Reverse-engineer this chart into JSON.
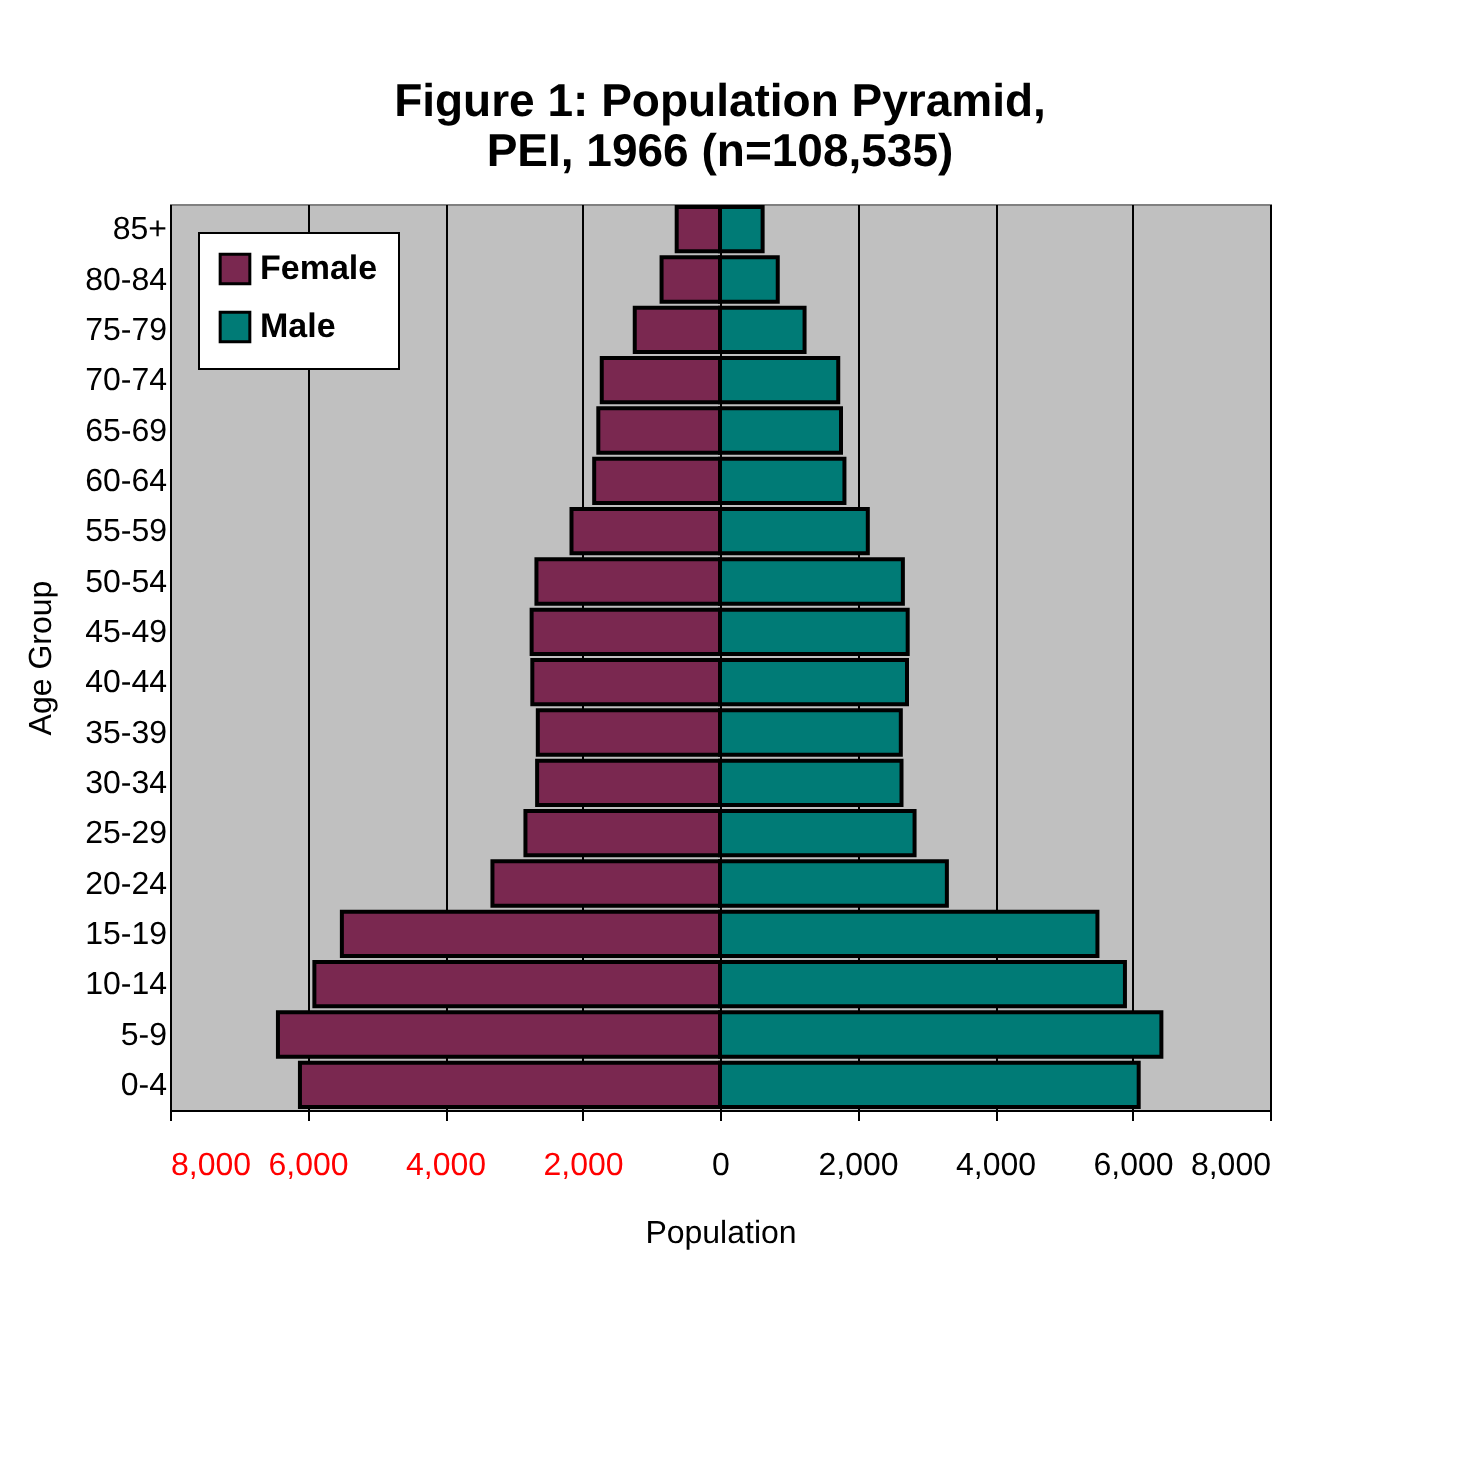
{
  "chart_data": {
    "type": "bar",
    "orientation": "horizontal",
    "stacked": true,
    "title": "Figure 1: Population Pyramid,\nPEI, 1966 (n=108,535)",
    "xlabel": "Population",
    "ylabel": "Age Group",
    "categories": [
      "85+",
      "80-84",
      "75-79",
      "70-74",
      "65-69",
      "60-64",
      "55-59",
      "50-54",
      "45-49",
      "40-44",
      "35-39",
      "30-34",
      "25-29",
      "20-24",
      "15-19",
      "10-14",
      "5-9",
      "0-4"
    ],
    "series": [
      {
        "name": "Female",
        "color": "#7a2850",
        "values": [
          -630,
          -850,
          -1240,
          -1720,
          -1770,
          -1830,
          -2160,
          -2670,
          -2740,
          -2730,
          -2650,
          -2660,
          -2830,
          -3310,
          -5500,
          -5900,
          -6430,
          -6110
        ]
      },
      {
        "name": "Male",
        "color": "#007b76",
        "values": [
          620,
          840,
          1230,
          1720,
          1760,
          1810,
          2150,
          2660,
          2730,
          2720,
          2630,
          2640,
          2830,
          3300,
          5490,
          5890,
          6420,
          6090
        ]
      }
    ],
    "xlim": [
      -8000,
      8000
    ],
    "xticks": [
      {
        "value": -8000,
        "label": "8,000"
      },
      {
        "value": -6000,
        "label": "6,000"
      },
      {
        "value": -4000,
        "label": "4,000"
      },
      {
        "value": -2000,
        "label": "2,000"
      },
      0,
      {
        "value": 2000,
        "label": "2,000"
      },
      {
        "value": 4000,
        "label": "4,000"
      },
      {
        "value": 6000,
        "label": "6,000"
      },
      {
        "value": 8000,
        "label": "8,000"
      }
    ],
    "grid": "x",
    "legend": "top left"
  }
}
